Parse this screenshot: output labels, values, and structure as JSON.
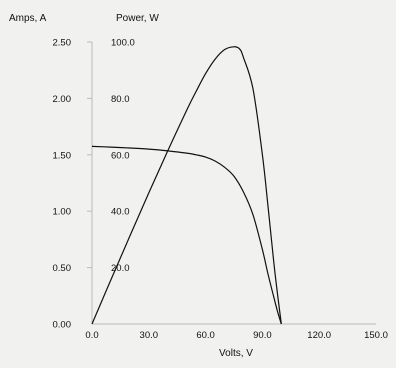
{
  "chart_data": {
    "type": "line",
    "left_axis_label": "Amps, A",
    "right_axis_label": "Power, W",
    "xlabel": "Volts, V",
    "xlim": [
      0,
      150
    ],
    "x_ticks": [
      "0.0",
      "30.0",
      "60.0",
      "90.0",
      "120.0",
      "150.0"
    ],
    "amps_ylim": [
      0,
      2.5
    ],
    "amps_ticks": [
      "0.00",
      "0.50",
      "1.00",
      "1.50",
      "2.00",
      "2.50"
    ],
    "power_ylim": [
      0,
      100
    ],
    "power_ticks": [
      "20.0",
      "40.0",
      "60.0",
      "80.0",
      "100.0"
    ],
    "series": [
      {
        "axis": "amps",
        "x": [
          0,
          10,
          20,
          30,
          40,
          50,
          55,
          60,
          65,
          70,
          75,
          80,
          85,
          90,
          93,
          96,
          98,
          100
        ],
        "values": [
          1.575,
          1.568,
          1.56,
          1.55,
          1.535,
          1.515,
          1.5,
          1.48,
          1.445,
          1.39,
          1.31,
          1.17,
          0.97,
          0.66,
          0.44,
          0.24,
          0.11,
          0.0
        ]
      },
      {
        "axis": "power",
        "x": [
          0,
          10,
          20,
          30,
          40,
          50,
          55,
          60,
          65,
          70,
          75,
          78,
          80,
          85,
          90,
          93,
          96,
          98,
          100
        ],
        "values": [
          0,
          15.7,
          31.2,
          46.5,
          61.4,
          75.8,
          82.5,
          88.8,
          93.9,
          97.3,
          98.3,
          97.5,
          94.5,
          83.5,
          60.0,
          41.5,
          22.0,
          10.5,
          0.0
        ]
      }
    ],
    "line_color": "#111111",
    "background_color": "#f1f1ef",
    "grid": false
  }
}
